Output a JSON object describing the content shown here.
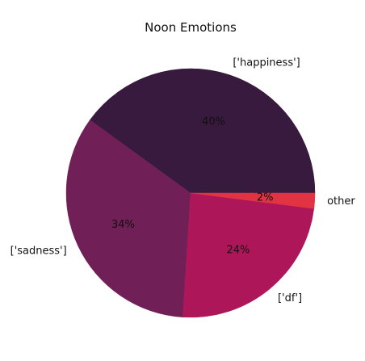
{
  "chart_data": {
    "type": "pie",
    "title": "Noon Emotions",
    "slices": [
      {
        "label": "['happiness']",
        "value": 40,
        "pct_label": "40%",
        "color": "#371a3d"
      },
      {
        "label": "['sadness']",
        "value": 34,
        "pct_label": "34%",
        "color": "#701f57"
      },
      {
        "label": "['df']",
        "value": 24,
        "pct_label": "24%",
        "color": "#ad1759"
      },
      {
        "label": "other",
        "value": 2,
        "pct_label": "2%",
        "color": "#e13342"
      }
    ],
    "start_angle_deg": 0,
    "direction": "counterclockwise"
  }
}
